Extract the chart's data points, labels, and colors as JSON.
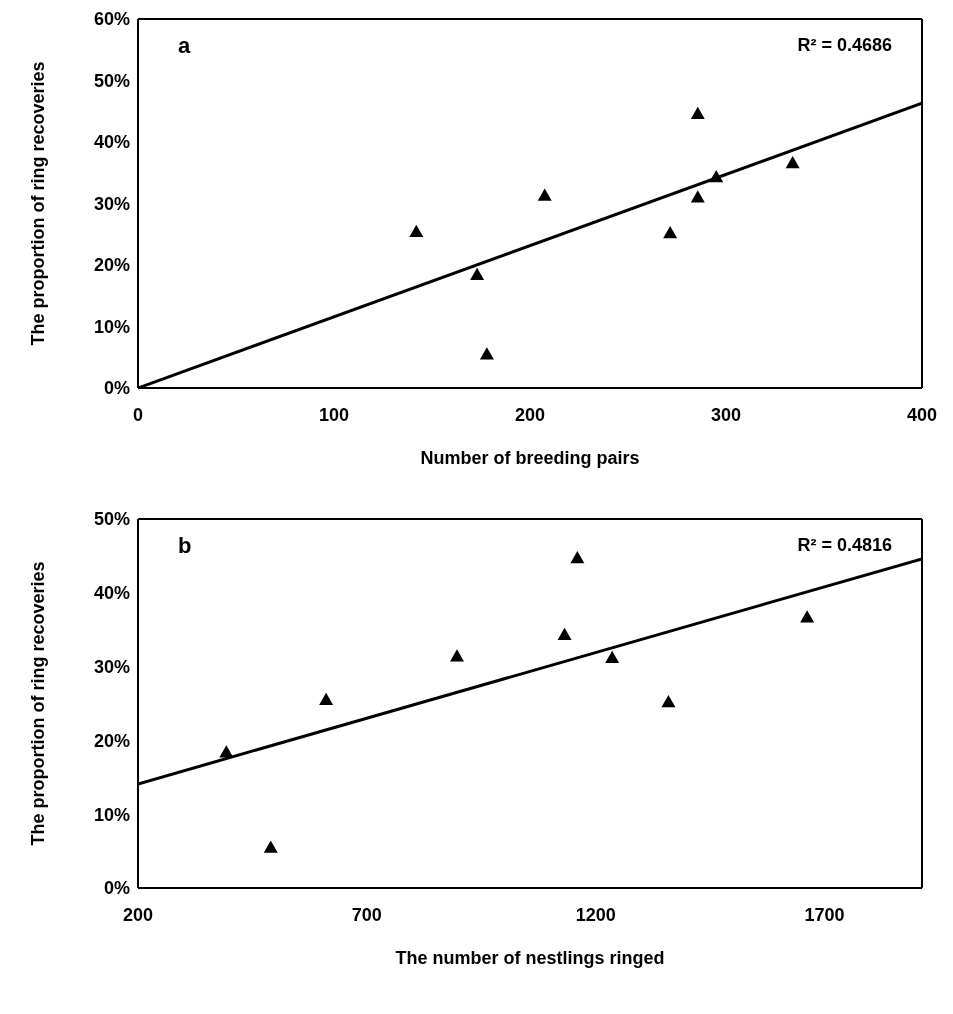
{
  "chart_data": [
    {
      "type": "scatter",
      "xlabel": "Number of breeding pairs",
      "ylabel": "The  proportion of ring recoveries",
      "annotations": [
        "a",
        "R² = 0.4686"
      ],
      "xlim": [
        0,
        400
      ],
      "xticks": [
        0,
        100,
        200,
        300,
        400
      ],
      "ylim": [
        0,
        60
      ],
      "yticks": [
        {
          "value": 0,
          "label": "0%"
        },
        {
          "value": 10,
          "label": "10%"
        },
        {
          "value": 20,
          "label": "20%"
        },
        {
          "value": 30,
          "label": "30%"
        },
        {
          "value": 40,
          "label": "40%"
        },
        {
          "value": 50,
          "label": "50%"
        },
        {
          "value": 60,
          "label": "60%"
        }
      ],
      "grid": false,
      "legend": false,
      "series": [
        {
          "color": "#000000",
          "marker": "triangle",
          "x": [
            142,
            173,
            178,
            207.5,
            271.5,
            285.6,
            285.6,
            295,
            334
          ],
          "values": [
            25.4,
            18.4,
            5.5,
            31.3,
            25.2,
            44.6,
            31.0,
            34.3,
            36.6
          ]
        },
        {
          "type": "line",
          "color": "#000000",
          "x": [
            0,
            400
          ],
          "values": [
            0,
            46.3
          ]
        }
      ]
    },
    {
      "type": "scatter",
      "xlabel": "The number of nestlings ringed",
      "ylabel": "The proportion of ring recoveries",
      "annotations": [
        "b",
        "R² = 0.4816"
      ],
      "xlim": [
        200,
        1913
      ],
      "xticks": [
        200,
        700,
        1200,
        1700
      ],
      "ylim": [
        0,
        50
      ],
      "yticks": [
        {
          "value": 0,
          "label": "0%"
        },
        {
          "value": 10,
          "label": "10%"
        },
        {
          "value": 20,
          "label": "20%"
        },
        {
          "value": 30,
          "label": "30%"
        },
        {
          "value": 40,
          "label": "40%"
        },
        {
          "value": 50,
          "label": "50%"
        }
      ],
      "grid": false,
      "legend": false,
      "series": [
        {
          "color": "#000000",
          "marker": "triangle",
          "x": [
            393,
            490,
            611,
            897,
            1132,
            1160,
            1236,
            1359,
            1662
          ],
          "values": [
            18.4,
            5.5,
            25.5,
            31.4,
            34.3,
            44.7,
            31.2,
            25.2,
            36.7
          ]
        },
        {
          "type": "line",
          "color": "#000000",
          "x": [
            200,
            1913
          ],
          "values": [
            14.1,
            44.6
          ]
        }
      ]
    }
  ]
}
